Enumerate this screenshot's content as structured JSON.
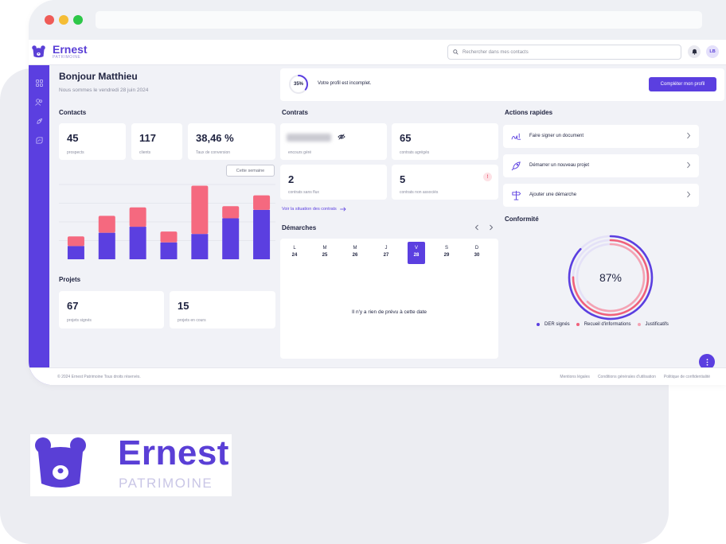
{
  "brand": {
    "name": "Ernest",
    "tagline": "PATRIMOINE",
    "color": "#5b3fe0",
    "accent": "#f5697f"
  },
  "header": {
    "search_placeholder": "Rechercher dans mes contacts",
    "avatar_initials": "LB"
  },
  "welcome": {
    "title": "Bonjour Matthieu",
    "date": "Nous sommes le vendredi 28 juin 2024"
  },
  "profile": {
    "percent": "35%",
    "percent_value": 0.35,
    "message": "Votre profil est incomplet.",
    "button": "Compléter mon profil"
  },
  "contacts": {
    "title": "Contacts",
    "stats": [
      {
        "value": "45",
        "label": "prospects"
      },
      {
        "value": "117",
        "label": "clients"
      },
      {
        "value": "38,46 %",
        "label": "Taux de conversion"
      }
    ],
    "period_button": "Cette semaine"
  },
  "chart_data": {
    "type": "bar",
    "stacked": true,
    "categories": [
      "",
      "",
      "",
      "",
      "",
      "",
      ""
    ],
    "series": [
      {
        "color": "#5b3fe0",
        "values": [
          11,
          22,
          27,
          14,
          21,
          34,
          41
        ]
      },
      {
        "color": "#f5697f",
        "values": [
          8,
          14,
          16,
          9,
          40,
          10,
          12
        ]
      }
    ],
    "ylim": [
      0,
      62
    ],
    "grid": true
  },
  "projects": {
    "title": "Projets",
    "stats": [
      {
        "value": "67",
        "label": "projets signés"
      },
      {
        "value": "15",
        "label": "projets en cours"
      }
    ]
  },
  "contracts": {
    "title": "Contrats",
    "cards": [
      {
        "value": "",
        "label": "encours géré"
      },
      {
        "value": "65",
        "label": "contrats agrégés"
      },
      {
        "value": "2",
        "label": "contrats sans flux"
      },
      {
        "value": "5",
        "label": "contrats non associés",
        "alert": "!"
      }
    ],
    "link": "Voir la situation des contrats"
  },
  "demarches": {
    "title": "Démarches",
    "days": [
      {
        "letter": "L",
        "num": "24"
      },
      {
        "letter": "M",
        "num": "25"
      },
      {
        "letter": "M",
        "num": "26"
      },
      {
        "letter": "J",
        "num": "27"
      },
      {
        "letter": "V",
        "num": "28",
        "selected": true
      },
      {
        "letter": "S",
        "num": "29"
      },
      {
        "letter": "D",
        "num": "30"
      }
    ],
    "empty": "Il n'y a rien de prévu à cette date"
  },
  "actions": {
    "title": "Actions rapides",
    "items": [
      {
        "label": "Faire signer un document",
        "icon": "signature-icon"
      },
      {
        "label": "Démarrer un nouveau projet",
        "icon": "rocket-icon"
      },
      {
        "label": "Ajouter une démarche",
        "icon": "signpost-icon"
      }
    ]
  },
  "conformity": {
    "title": "Conformité",
    "percent": "87%",
    "rings": [
      {
        "name": "DER signés",
        "value": 0.87,
        "color": "#5b3fe0"
      },
      {
        "name": "Recueil d'informations",
        "value": 0.75,
        "color": "#f0607a"
      },
      {
        "name": "Justificatifs",
        "value": 0.62,
        "color": "#f4a3b3"
      }
    ]
  },
  "footer": {
    "copyright": "© 2024 Ernest Patrimoine Tous droits réservés.",
    "links": [
      "Mentions légales",
      "Conditions générales d'utilisation",
      "Politique de confidentialité"
    ]
  }
}
